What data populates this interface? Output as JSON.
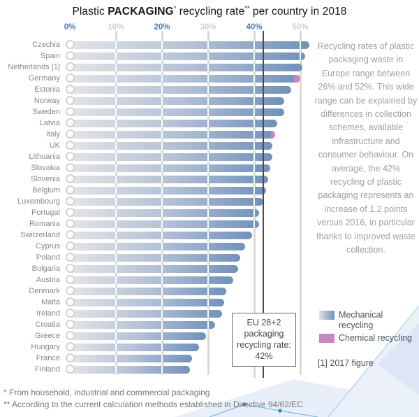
{
  "title": {
    "prefix": "Plastic ",
    "bold_word": "PACKAGING",
    "star1": "*",
    "mid": " recycling rate",
    "star2": "**",
    "suffix": " per country in 2018"
  },
  "axis": {
    "ticks": [
      {
        "label": "0%",
        "value": 0,
        "emphasis": true
      },
      {
        "label": "10%",
        "value": 10,
        "emphasis": false
      },
      {
        "label": "20%",
        "value": 20,
        "emphasis": true
      },
      {
        "label": "30%",
        "value": 30,
        "emphasis": false
      },
      {
        "label": "40%",
        "value": 40,
        "emphasis": true
      },
      {
        "label": "50%",
        "value": 50,
        "emphasis": false
      }
    ]
  },
  "chart_data": {
    "type": "bar",
    "orientation": "horizontal",
    "unit": "%",
    "xlim": [
      0,
      52
    ],
    "title": "Plastic PACKAGING recycling rate per country in 2018",
    "categories": [
      "Czechia",
      "Spain",
      "Netherlands [1]",
      "Germany",
      "Estonia",
      "Norway",
      "Sweden",
      "Latvia",
      "Italy",
      "UK",
      "Lithuania",
      "Slovakia",
      "Slovenia",
      "Belgium",
      "Luxembourg",
      "Portugal",
      "Romania",
      "Switzerland",
      "Cyprus",
      "Poland",
      "Bulgaria",
      "Austria",
      "Denmark",
      "Malta",
      "Ireland",
      "Croatia",
      "Greece",
      "Hungary",
      "France",
      "Finland"
    ],
    "series": [
      {
        "name": "Mechanical recycling",
        "values": [
          52,
          51,
          50.5,
          49,
          48,
          46.5,
          46.5,
          45,
          44,
          44,
          44,
          43.5,
          43,
          42.5,
          42,
          41,
          41,
          39.5,
          38,
          37,
          36.5,
          35.5,
          34,
          33.5,
          33,
          31.5,
          29.5,
          28,
          26.5,
          26
        ]
      },
      {
        "name": "Chemical recycling",
        "values": [
          0,
          0,
          0,
          1,
          0,
          0,
          0,
          0,
          0.5,
          0,
          0,
          0,
          0,
          0,
          0,
          0,
          0,
          0,
          0,
          0,
          0,
          0,
          0,
          0,
          0,
          0,
          0,
          0,
          0,
          0
        ]
      }
    ],
    "eu_line": {
      "label": "EU 28+2 packaging recycling rate",
      "value": 42
    },
    "legend_position": "right",
    "grid": true
  },
  "annotation_box": {
    "lines": [
      "EU 28+2",
      "packaging",
      "recycling rate:",
      "42%"
    ]
  },
  "sidebar_text": "Recycling rates of plastic packaging waste in Europe range between 26% and 52%. This wide range can be explained by differences in collection schemes, available infrastructure and consumer behaviour. On average, the 42% recycling of plastic packaging represents an increase of 1.2 points versus 2016, in particular thanks to improved waste collection.",
  "legend": {
    "mechanical_label": "Mechanical recycling",
    "chemical_label": "Chemical recycling",
    "note": "[1] 2017 figure"
  },
  "footnotes": [
    "* From household, industrial and commercial packaging",
    "** According to the current calculation methods established in Directive 94/62/EC"
  ],
  "colors": {
    "bar_gradient_start": "#e3e4e6",
    "bar_gradient_end": "#7191bb",
    "chemical_pink": "#c987bd",
    "axis_blue": "#4a78b5",
    "axis_dim": "#c9cdd2",
    "gridline": "#dadada",
    "eu_line": "#4b4b4b",
    "country_label": "#85898e",
    "sidebar_text": "#9aa1a8",
    "legend_text": "#46535f",
    "footnote_text": "#75787c",
    "decor_blue": "#7cbddd",
    "decor_fill": "#e2eaf5"
  }
}
